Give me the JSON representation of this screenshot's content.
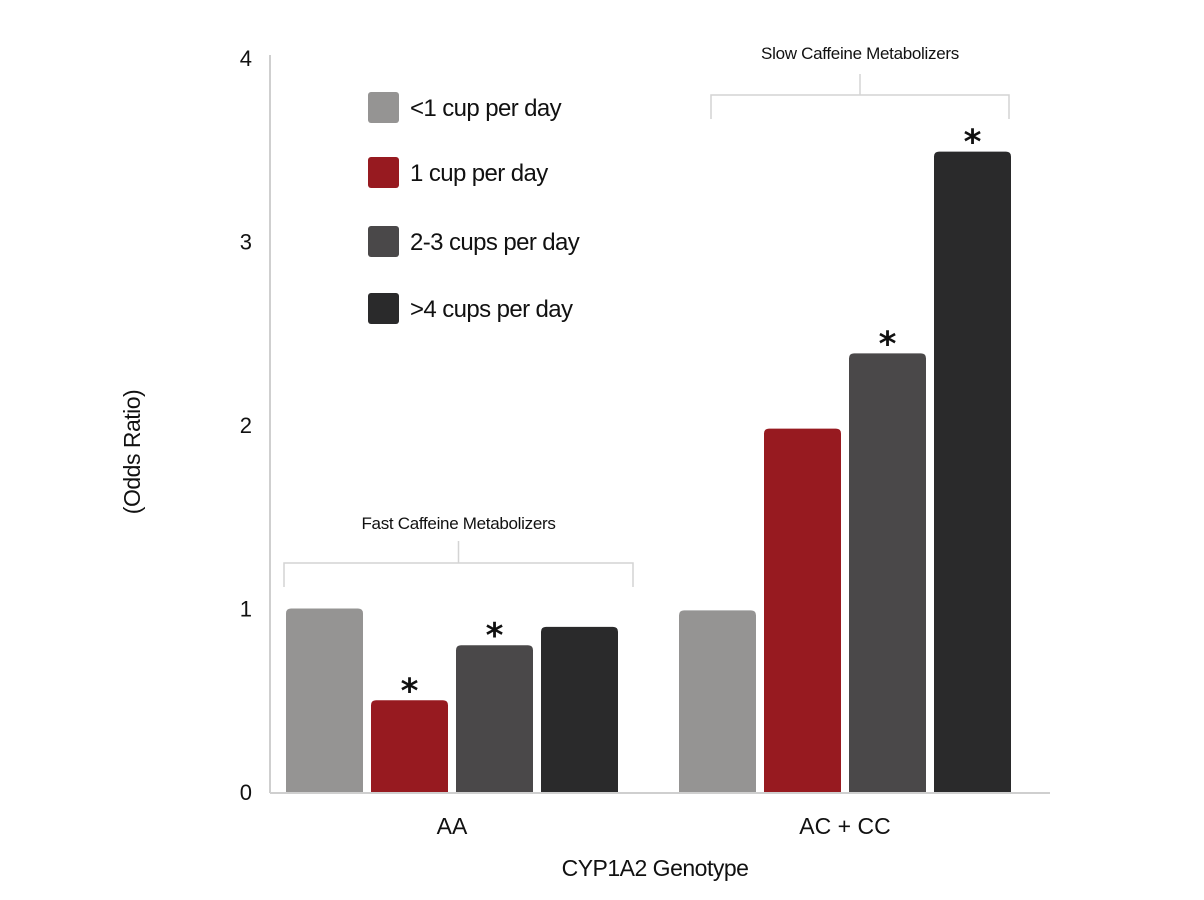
{
  "chart_data": {
    "type": "bar",
    "xlabel": "CYP1A2 Genotype",
    "ylabel": "(Odds Ratio)",
    "ylim": [
      0,
      4
    ],
    "yticks": [
      "0",
      "1",
      "2",
      "3",
      "4"
    ],
    "categories": [
      "AA",
      "AC + CC"
    ],
    "group_labels": [
      "Fast Caffeine Metabolizers",
      "Slow Caffeine Metabolizers"
    ],
    "series": [
      {
        "name": "<1 cup per day",
        "color": "#959493",
        "values": [
          1.0,
          0.99
        ],
        "significant": [
          false,
          false
        ]
      },
      {
        "name": "1 cup per day",
        "color": "#971a20",
        "values": [
          0.5,
          1.98
        ],
        "significant": [
          true,
          false
        ]
      },
      {
        "name": "2-3 cups per day",
        "color": "#4a4849",
        "values": [
          0.8,
          2.39
        ],
        "significant": [
          true,
          true
        ]
      },
      {
        "name": ">4 cups per day",
        "color": "#2a2a2b",
        "values": [
          0.9,
          3.49
        ],
        "significant": [
          false,
          true
        ]
      }
    ],
    "significance_marker": "*",
    "legend": "top-left",
    "grid": false
  }
}
